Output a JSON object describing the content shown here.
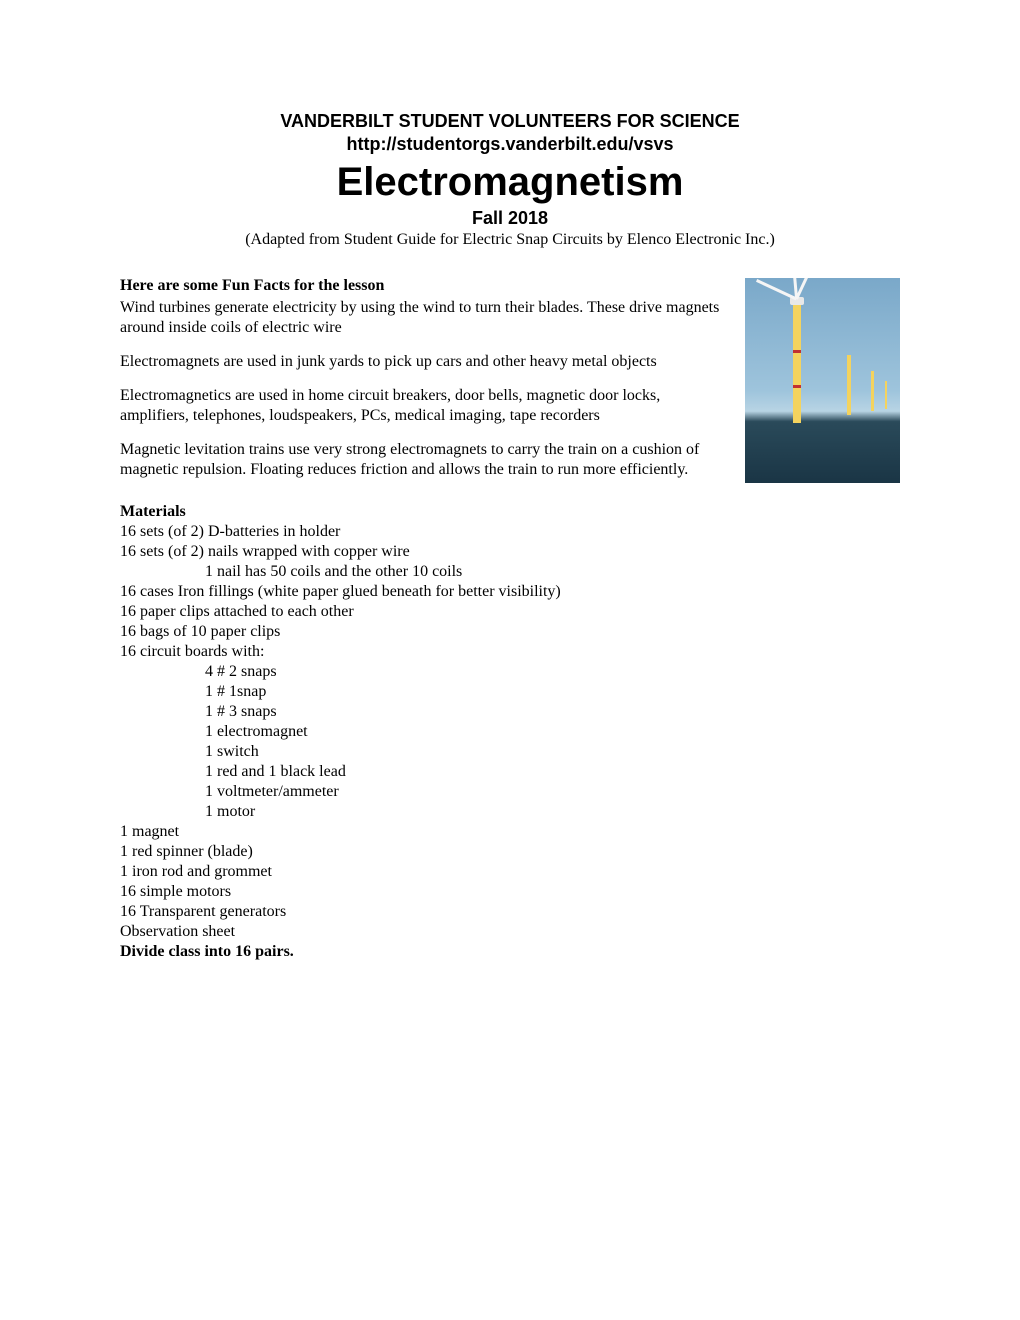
{
  "header": {
    "org": "VANDERBILT STUDENT VOLUNTEERS FOR SCIENCE",
    "url": "http://studentorgs.vanderbilt.edu/vsvs",
    "title": "Electromagnetism",
    "subtitle": "Fall 2018",
    "adapted": "(Adapted from Student Guide for Electric Snap Circuits by Elenco Electronic Inc.)"
  },
  "funfacts": {
    "heading": "Here are some Fun Facts for the lesson",
    "p1": "Wind turbines generate electricity by using the wind to turn their blades. These drive magnets around inside coils of electric wire",
    "p2": "Electromagnets are used in junk yards to pick up cars and other heavy metal objects",
    "p3": "Electromagnetics are used in home circuit breakers, door bells, magnetic door locks, amplifiers, telephones, loudspeakers, PCs, medical imaging, tape recorders",
    "p4": "Magnetic levitation trains use very strong electromagnets to carry the train on a cushion of magnetic repulsion. Floating reduces friction and allows the train to run more efficiently."
  },
  "materials": {
    "heading": "Materials",
    "l1": "16 sets (of 2) D-batteries in holder",
    "l2": "16 sets (of 2) nails wrapped with copper wire",
    "l3": "1 nail has 50 coils and the other 10 coils",
    "l4": "16 cases Iron fillings (white paper glued beneath for better visibility)",
    "l5": "16 paper clips attached to each other",
    "l6": "16 bags of 10 paper clips",
    "l7": "16 circuit boards with:",
    "l8": "4 # 2 snaps",
    "l9": "1 # 1snap",
    "l10": "1 # 3 snaps",
    "l11": "1 electromagnet",
    "l12": "1 switch",
    "l13": "1 red and 1 black lead",
    "l14": "1 voltmeter/ammeter",
    "l15": "1 motor",
    "l16": "1 magnet",
    "l17": "1 red spinner (blade)",
    "l18": "1 iron rod and grommet",
    "l19": "16 simple motors",
    "l20": "16 Transparent generators",
    "l21": "Observation sheet",
    "divide": "Divide class into 16 pairs."
  },
  "image": {
    "alt": "wind-turbine-photo",
    "sky_top": "#7aa8c9",
    "sky_bottom": "#b8d4e4",
    "sea": "#1a3545",
    "pole_color": "#f4d35e",
    "blade_color": "#f5f5f5",
    "band_color": "#c23030"
  }
}
